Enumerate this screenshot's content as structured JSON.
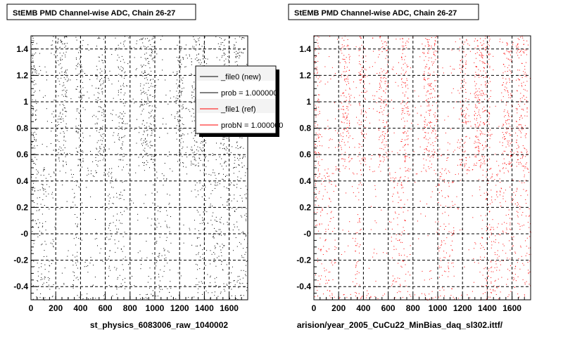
{
  "window": {
    "footer_text": ""
  },
  "chart_data": [
    {
      "type": "scatter",
      "title": "StEMB PMD Channel-wise ADC, Chain 26-27",
      "xlabel": "st_physics_6083006_raw_1040002",
      "ylabel": "",
      "xlim": [
        0,
        1750
      ],
      "ylim": [
        -0.5,
        1.5
      ],
      "x_ticks": [
        "0",
        "200",
        "400",
        "600",
        "800",
        "1000",
        "1200",
        "1400",
        "1600"
      ],
      "y_ticks": [
        "-0.4",
        "-0.2",
        "-0",
        "0.2",
        "0.4",
        "0.6",
        "0.8",
        "1",
        "1.2",
        "1.4"
      ],
      "grid": true,
      "marker_color": "#000000",
      "dense_bands_upper": [
        [
          0,
          45
        ],
        [
          210,
          290
        ],
        [
          360,
          420
        ],
        [
          520,
          600
        ],
        [
          700,
          760
        ],
        [
          880,
          1000
        ],
        [
          1170,
          1230
        ],
        [
          1290,
          1420
        ],
        [
          1520,
          1600
        ],
        [
          1630,
          1720
        ]
      ],
      "empty_lower_blocks": [
        [
          180,
          330
        ],
        [
          380,
          620
        ],
        [
          760,
          1000
        ],
        [
          1130,
          1330
        ]
      ],
      "legend": {
        "position": "top-right",
        "entries": [
          {
            "label": "_file0 (new)",
            "color": "#000000"
          },
          {
            "label": "prob = 1.000000",
            "color": "#000000"
          },
          {
            "label": "_file1 (ref)",
            "color": "#ff0000"
          },
          {
            "label": "probN = 1.000000",
            "color": "#ff0000"
          }
        ]
      }
    },
    {
      "type": "scatter",
      "title": "StEMB PMD Channel-wise ADC, Chain 26-27",
      "xlabel": "arision/year_2005_CuCu22_MinBias_daq_sl302.ittf/",
      "ylabel": "",
      "xlim": [
        0,
        1750
      ],
      "ylim": [
        -0.5,
        1.5
      ],
      "x_ticks": [
        "0",
        "200",
        "400",
        "600",
        "800",
        "1000",
        "1200",
        "1400",
        "1600"
      ],
      "y_ticks": [
        "-0.4",
        "-0.2",
        "-0",
        "0.2",
        "0.4",
        "0.6",
        "0.8",
        "1",
        "1.2",
        "1.4"
      ],
      "grid": true,
      "marker_color": "#ff0000",
      "dense_bands_upper": [
        [
          0,
          45
        ],
        [
          210,
          290
        ],
        [
          360,
          420
        ],
        [
          520,
          600
        ],
        [
          700,
          760
        ],
        [
          880,
          1000
        ],
        [
          1170,
          1230
        ],
        [
          1290,
          1420
        ],
        [
          1520,
          1600
        ],
        [
          1630,
          1720
        ]
      ],
      "empty_lower_blocks": [
        [
          180,
          330
        ],
        [
          380,
          620
        ],
        [
          760,
          1000
        ],
        [
          1130,
          1330
        ]
      ]
    }
  ]
}
